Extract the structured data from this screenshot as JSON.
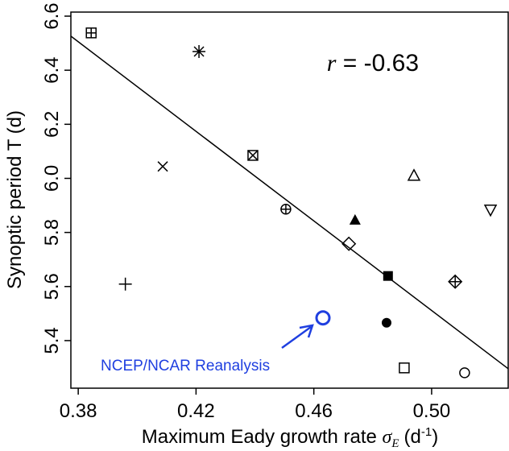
{
  "chart_data": {
    "type": "scatter",
    "xlabel_parts": [
      "Maximum Eady growth rate",
      "σ",
      "E",
      "(d",
      "-1",
      ")"
    ],
    "ylabel": "Synoptic period T (d)",
    "stat": {
      "symbol": "r",
      "text": "= -0.63"
    },
    "annotation": {
      "text": "NCEP/NCAR Reanalysis",
      "color": "#1f3fe0"
    },
    "xlim": [
      0.3775,
      0.526
    ],
    "ylim": [
      5.224,
      6.615
    ],
    "xticks": [
      0.38,
      0.42,
      0.46,
      {
        "value": 0.5,
        "label": "0.50"
      }
    ],
    "yticks": [
      5.4,
      5.6,
      5.8,
      {
        "value": 6,
        "label": "6.0"
      },
      6.2,
      6.4,
      6.6
    ],
    "fit": {
      "x": [
        0.3775,
        0.526
      ],
      "y": [
        6.526,
        5.296
      ]
    },
    "points": [
      {
        "x": 0.3844,
        "y": 6.538,
        "marker": "square-plus",
        "color": "#000000"
      },
      {
        "x": 0.421,
        "y": 6.469,
        "marker": "asterisk",
        "color": "#000000"
      },
      {
        "x": 0.4087,
        "y": 6.044,
        "marker": "x",
        "color": "#000000"
      },
      {
        "x": 0.4393,
        "y": 6.085,
        "marker": "square-x",
        "color": "#000000"
      },
      {
        "x": 0.4505,
        "y": 5.886,
        "marker": "circle-plus",
        "color": "#000000"
      },
      {
        "x": 0.474,
        "y": 5.847,
        "marker": "triangle-filled",
        "color": "#000000"
      },
      {
        "x": 0.494,
        "y": 6.011,
        "marker": "triangle",
        "color": "#000000"
      },
      {
        "x": 0.52,
        "y": 5.883,
        "marker": "triangle-down",
        "color": "#000000"
      },
      {
        "x": 0.4719,
        "y": 5.758,
        "marker": "diamond",
        "color": "#000000"
      },
      {
        "x": 0.4852,
        "y": 5.639,
        "marker": "square-filled",
        "color": "#000000"
      },
      {
        "x": 0.508,
        "y": 5.618,
        "marker": "diamond-plus",
        "color": "#000000"
      },
      {
        "x": 0.396,
        "y": 5.609,
        "marker": "plus",
        "color": "#000000"
      },
      {
        "x": 0.4631,
        "y": 5.484,
        "marker": "circle-large",
        "color": "#1f3fe0"
      },
      {
        "x": 0.4847,
        "y": 5.466,
        "marker": "circle-filled",
        "color": "#000000"
      },
      {
        "x": 0.4907,
        "y": 5.299,
        "marker": "square",
        "color": "#000000"
      },
      {
        "x": 0.5112,
        "y": 5.281,
        "marker": "circle",
        "color": "#000000"
      }
    ]
  }
}
